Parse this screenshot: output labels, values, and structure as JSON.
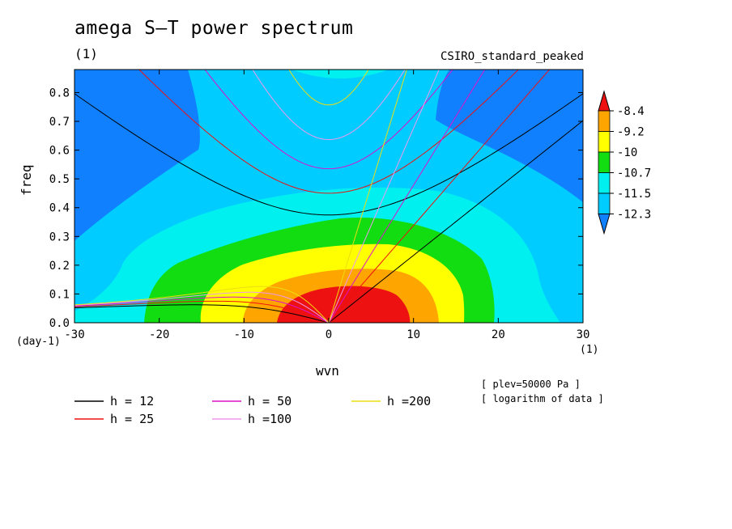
{
  "title": "amega S–T power spectrum",
  "subtitle": "(1)",
  "model_name": "CSIRO_standard_peaked",
  "notes": [
    "[ plev=50000 Pa ]",
    "[ logarithm of data ]"
  ],
  "chart_data": {
    "type": "contour",
    "xlabel": "wvn",
    "ylabel": "freq",
    "x_unit": "(day-1)",
    "x_unit_right": "(1)",
    "xlim": [
      -30,
      30
    ],
    "ylim": [
      0,
      0.88
    ],
    "xticks": [
      -30,
      -20,
      -10,
      0,
      10,
      20,
      30
    ],
    "xtick_labels": [
      "-30",
      "-20",
      "-10",
      "0",
      "10",
      "20",
      "30"
    ],
    "yticks": [
      0,
      0.1,
      0.2,
      0.3,
      0.4,
      0.5,
      0.6,
      0.7,
      0.8
    ],
    "ytick_labels": [
      "0.0",
      "0.1",
      "0.2",
      "0.3",
      "0.4",
      "0.5",
      "0.6",
      "0.7",
      "0.8"
    ],
    "colorbar": {
      "levels": [
        -8.4,
        -9.2,
        -10,
        -10.7,
        -11.5,
        -12.3
      ],
      "labels": [
        "-8.4",
        "-9.2",
        "-10",
        "-10.7",
        "-11.5",
        "-12.3"
      ],
      "colors": [
        "#ee1111",
        "#ffa500",
        "#ffff00",
        "#11dd11",
        "#00f0f0",
        "#00ccff",
        "#1180ff"
      ]
    },
    "dispersion_curves": [
      {
        "label": "h = 12",
        "h": 12,
        "color": "#000000"
      },
      {
        "label": "h = 25",
        "h": 25,
        "color": "#ee1111"
      },
      {
        "label": "h = 50",
        "h": 50,
        "color": "#dd11cc"
      },
      {
        "label": "h =100",
        "h": 100,
        "color": "#ee99ee"
      },
      {
        "label": "h =200",
        "h": 200,
        "color": "#eedd11"
      }
    ]
  }
}
